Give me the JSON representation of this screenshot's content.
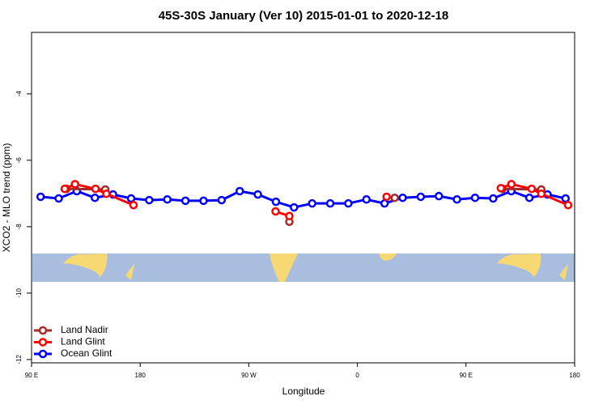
{
  "chart_data": {
    "type": "line",
    "title": "45S-30S January (Ver 10)   2015-01-01 to 2020-12-18",
    "xlabel": "Longitude",
    "ylabel": "XCO2 - MLO trend (ppm)",
    "xlim": [
      90,
      540
    ],
    "ylim": [
      -12.1,
      -2.15
    ],
    "xticks": [
      {
        "value": 90,
        "label": "90 E"
      },
      {
        "value": 180,
        "label": "180"
      },
      {
        "value": 270,
        "label": "90 W"
      },
      {
        "value": 360,
        "label": "0"
      },
      {
        "value": 450,
        "label": "90 E"
      },
      {
        "value": 540,
        "label": "180"
      }
    ],
    "yticks": [
      -4,
      -6,
      -8,
      -10,
      -12
    ],
    "legend": "lower left",
    "series": [
      {
        "name": "Land Nadir",
        "color": "#a52a2a",
        "x": [
          118.9,
          151.1,
          null,
          303.6,
          null,
          390.9,
          null,
          480.2,
          512.4
        ],
        "values": [
          -6.86,
          -6.88,
          null,
          -7.85,
          null,
          -7.13,
          null,
          -6.86,
          -6.88
        ]
      },
      {
        "name": "Land Glint",
        "color": "#ff0000",
        "x": [
          117.5,
          126,
          143,
          152,
          174.5,
          null,
          292.2,
          303.6,
          null,
          384.2,
          null,
          478.9,
          487.6,
          504.4,
          512.4,
          534.6
        ],
        "values": [
          -6.86,
          -6.72,
          -6.86,
          -7.01,
          -7.35,
          null,
          -7.54,
          -7.68,
          null,
          -7.1,
          null,
          -6.84,
          -6.72,
          -6.86,
          -7.01,
          -7.35
        ]
      },
      {
        "name": "Ocean Glint",
        "color": "#0000ff",
        "x": [
          97.5,
          112.5,
          127.5,
          142.5,
          157.5,
          172.5,
          187.5,
          202.5,
          217.5,
          232.5,
          247.5,
          262.5,
          277.5,
          292.5,
          307.5,
          322.5,
          337.5,
          352.5,
          367.5,
          382.5,
          397.5,
          412.5,
          427.5,
          442.5,
          457.5,
          472.5,
          487.5,
          502.5,
          517.5,
          532.5
        ],
        "values": [
          -7.1,
          -7.15,
          -6.93,
          -7.13,
          -7.03,
          -7.15,
          -7.2,
          -7.18,
          -7.22,
          -7.22,
          -7.2,
          -6.93,
          -7.03,
          -7.25,
          -7.42,
          -7.3,
          -7.3,
          -7.3,
          -7.18,
          -7.3,
          -7.13,
          -7.1,
          -7.08,
          -7.18,
          -7.13,
          -7.15,
          -6.93,
          -7.13,
          -7.03,
          -7.15
        ]
      }
    ]
  }
}
